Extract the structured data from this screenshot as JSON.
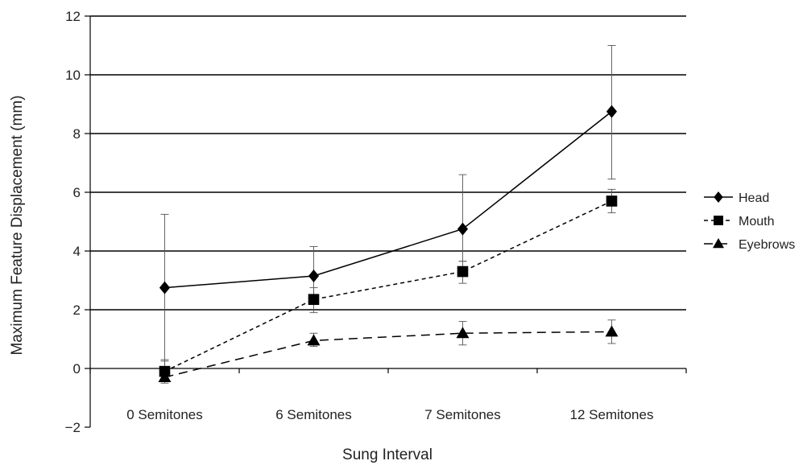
{
  "chart_data": {
    "type": "line",
    "title": "",
    "xlabel": "Sung Interval",
    "ylabel": "Maximum Feature Displacement (mm)",
    "ylim": [
      -2,
      12
    ],
    "yticks": [
      -2,
      0,
      2,
      4,
      6,
      8,
      10,
      12
    ],
    "ytick_labels": [
      "−2",
      "0",
      "2",
      "4",
      "6",
      "8",
      "10",
      "12"
    ],
    "grid": "horizontal major gridlines",
    "legend_position": "right",
    "categories": [
      "0 Semitones",
      "6 Semitones",
      "7 Semitones",
      "12 Semitones"
    ],
    "series": [
      {
        "name": "Head",
        "marker": "diamond",
        "line_style": "solid",
        "values": [
          2.75,
          3.15,
          4.75,
          8.75
        ],
        "error_low": [
          0.0,
          2.3,
          3.65,
          6.45
        ],
        "error_high": [
          5.25,
          4.15,
          6.6,
          11.0
        ]
      },
      {
        "name": "Mouth",
        "marker": "square",
        "line_style": "dashed",
        "values": [
          -0.1,
          2.35,
          3.3,
          5.7
        ],
        "error_low": [
          -0.45,
          1.9,
          2.9,
          5.3
        ],
        "error_high": [
          0.3,
          2.75,
          3.65,
          6.1
        ]
      },
      {
        "name": "Eyebrows",
        "marker": "triangle",
        "line_style": "long-dashed",
        "values": [
          -0.3,
          0.95,
          1.2,
          1.25
        ],
        "error_low": [
          -0.5,
          0.75,
          0.8,
          0.85
        ],
        "error_high": [
          0.25,
          1.2,
          1.6,
          1.65
        ]
      }
    ]
  }
}
